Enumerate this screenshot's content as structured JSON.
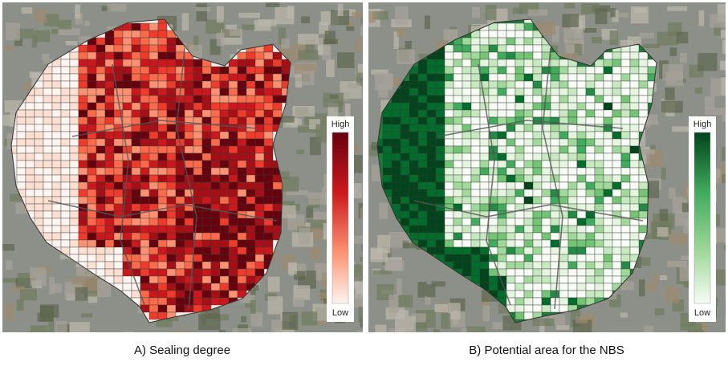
{
  "panels": [
    {
      "caption": "A) Sealing degree",
      "legend": {
        "high": "High",
        "low": "Low"
      }
    },
    {
      "caption": "B) Potential area for the NBS",
      "legend": {
        "high": "High",
        "low": "Low"
      }
    }
  ]
}
